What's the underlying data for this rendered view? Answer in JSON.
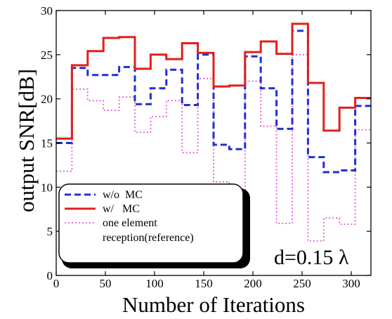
{
  "chart_data": {
    "type": "line",
    "xlabel": "Number of Iterations",
    "ylabel": "output SNR[dB]",
    "xlim": [
      0,
      320
    ],
    "ylim": [
      0,
      30
    ],
    "xticks": [
      0,
      50,
      100,
      150,
      200,
      250,
      300
    ],
    "yticks": [
      0,
      5,
      10,
      15,
      20,
      25,
      30
    ],
    "grid": false,
    "legend_position": "bottom-left",
    "annotation": "d=0.15 λ",
    "series": [
      {
        "name": "w/o MC",
        "color": "#1f2fd6",
        "style": "dashed",
        "x": [
          0,
          16,
          16,
          32,
          32,
          48,
          48,
          64,
          64,
          80,
          80,
          96,
          96,
          112,
          112,
          128,
          128,
          144,
          144,
          160,
          160,
          176,
          176,
          192,
          192,
          208,
          208,
          224,
          224,
          240,
          240,
          256,
          256,
          272,
          272,
          288,
          288,
          304,
          304,
          320
        ],
        "y": [
          15.0,
          15.0,
          23.5,
          23.5,
          22.7,
          22.7,
          22.7,
          22.7,
          23.6,
          23.6,
          19.4,
          19.4,
          21.2,
          21.2,
          23.3,
          23.3,
          19.3,
          19.3,
          25.0,
          25.0,
          14.8,
          14.8,
          14.3,
          14.3,
          24.8,
          24.8,
          21.2,
          21.2,
          16.6,
          16.6,
          27.7,
          27.7,
          13.4,
          13.4,
          11.7,
          11.7,
          11.9,
          11.9,
          19.2,
          19.2
        ]
      },
      {
        "name": "w/   MC",
        "color": "#e0201b",
        "style": "solid",
        "x": [
          0,
          16,
          16,
          32,
          32,
          48,
          48,
          64,
          64,
          80,
          80,
          96,
          96,
          112,
          112,
          128,
          128,
          144,
          144,
          160,
          160,
          176,
          176,
          192,
          192,
          208,
          208,
          224,
          224,
          240,
          240,
          256,
          256,
          272,
          272,
          288,
          288,
          304,
          304,
          320
        ],
        "y": [
          15.5,
          15.5,
          23.8,
          23.8,
          25.4,
          25.4,
          26.9,
          26.9,
          27.0,
          27.0,
          23.4,
          23.4,
          25.0,
          25.0,
          24.5,
          24.5,
          26.3,
          26.3,
          25.2,
          25.2,
          21.4,
          21.4,
          21.5,
          21.5,
          25.3,
          25.3,
          26.5,
          26.5,
          25.1,
          25.1,
          28.5,
          28.5,
          21.8,
          21.8,
          16.4,
          16.4,
          19.0,
          19.0,
          20.1,
          20.1
        ]
      },
      {
        "name": "one element reception(reference)",
        "color": "#e35ad6",
        "style": "dotted",
        "x": [
          0,
          16,
          16,
          32,
          32,
          48,
          48,
          64,
          64,
          80,
          80,
          96,
          96,
          112,
          112,
          128,
          128,
          144,
          144,
          160,
          160,
          176,
          176,
          192,
          192,
          208,
          208,
          224,
          224,
          240,
          240,
          256,
          256,
          272,
          272,
          288,
          288,
          304,
          304,
          320
        ],
        "y": [
          11.8,
          11.8,
          21.1,
          21.1,
          19.8,
          19.8,
          18.7,
          18.7,
          20.2,
          20.2,
          16.2,
          16.2,
          18.0,
          18.0,
          19.8,
          19.8,
          13.9,
          13.9,
          22.3,
          22.3,
          10.6,
          10.6,
          8.6,
          8.6,
          22.0,
          22.0,
          16.9,
          16.9,
          5.9,
          5.9,
          25.0,
          25.0,
          3.9,
          3.9,
          6.5,
          6.5,
          5.8,
          5.8,
          16.5,
          16.5
        ]
      }
    ],
    "legend": [
      {
        "key": "wo",
        "label_lines": [
          "w/o  MC"
        ]
      },
      {
        "key": "w",
        "label_lines": [
          "w/   MC"
        ]
      },
      {
        "key": "ref",
        "label_lines": [
          "one element",
          "reception(reference)"
        ]
      }
    ]
  }
}
